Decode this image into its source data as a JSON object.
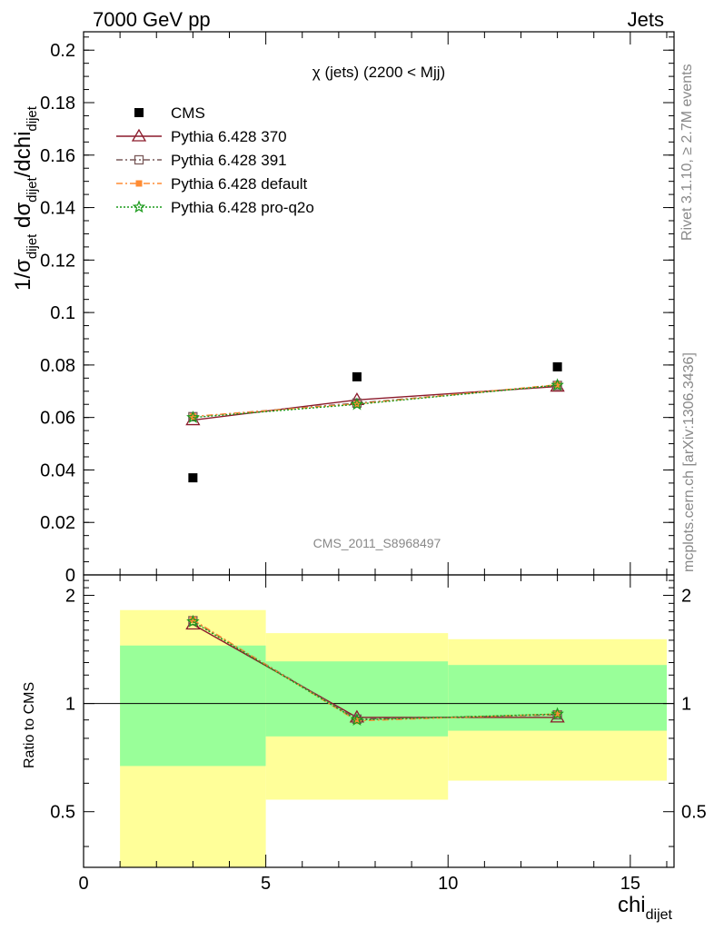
{
  "header": {
    "left": "7000 GeV pp",
    "right": "Jets"
  },
  "side_labels": {
    "rivet": "Rivet 3.1.10, ≥ 2.7M events",
    "mcplots": "mcplots.cern.ch [arXiv:1306.3436]"
  },
  "chart_data": [
    {
      "type": "line",
      "title": "χ (jets) (2200 < Mjj)",
      "watermark": "CMS_2011_S8968497",
      "ylabel": {
        "main": "1/σ",
        "sub1": "dijet",
        "mid": " dσ",
        "sub2": "dijet",
        "end": "/dchi",
        "sub3": "dijet"
      },
      "xlim": [
        0,
        16.2
      ],
      "ylim": [
        0,
        0.207
      ],
      "yticks": [
        0,
        0.02,
        0.04,
        0.06,
        0.08,
        0.1,
        0.12,
        0.14,
        0.16,
        0.18,
        0.2
      ],
      "ytick_labels": [
        "0",
        "0.02",
        "0.04",
        "0.06",
        "0.08",
        "0.1",
        "0.12",
        "0.14",
        "0.16",
        "0.18",
        "0.2"
      ],
      "legend_position": "top-left",
      "x": [
        3,
        7.5,
        13
      ],
      "series": [
        {
          "name": "CMS",
          "marker": "square",
          "color": "#000000",
          "values": [
            0.037,
            0.0755,
            0.0793
          ]
        },
        {
          "name": "Pythia 6.428 370",
          "marker": "triangle",
          "color": "#8b1a2b",
          "dash": "",
          "values": [
            0.059,
            0.0667,
            0.0718
          ]
        },
        {
          "name": "Pythia 6.428 391",
          "marker": "open-square",
          "color": "#7a5a5a",
          "dash": "7,3,2,3",
          "values": [
            0.0603,
            0.0655,
            0.0722
          ]
        },
        {
          "name": "Pythia 6.428 default",
          "marker": "filled-square",
          "color": "#ff8c33",
          "dash": "7,3,2,3",
          "values": [
            0.0604,
            0.0652,
            0.0725
          ]
        },
        {
          "name": "Pythia 6.428 pro-q2o",
          "marker": "star",
          "color": "#1a9a1a",
          "dash": "2,2",
          "values": [
            0.06,
            0.065,
            0.0723
          ]
        }
      ]
    },
    {
      "type": "line",
      "ylabel": "Ratio to CMS",
      "xlabel": {
        "main": "chi",
        "sub": "dijet"
      },
      "xlim": [
        0,
        16.2
      ],
      "ylim": [
        0.35,
        2.28
      ],
      "yticks": [
        0.5,
        1,
        2
      ],
      "ytick_labels": [
        "0.5",
        "1",
        "2"
      ],
      "xticks": [
        0,
        5,
        10,
        15
      ],
      "xtick_labels": [
        "0",
        "5",
        "10",
        "15"
      ],
      "bands": [
        {
          "x0": 1,
          "x1": 5,
          "yellow": [
            0.35,
            1.82
          ],
          "green": [
            0.67,
            1.45
          ]
        },
        {
          "x0": 5,
          "x1": 10,
          "yellow": [
            0.54,
            1.57
          ],
          "green": [
            0.81,
            1.31
          ]
        },
        {
          "x0": 10,
          "x1": 16,
          "yellow": [
            0.61,
            1.51
          ],
          "green": [
            0.84,
            1.28
          ]
        }
      ],
      "x": [
        3,
        7.5,
        13
      ],
      "series": [
        {
          "name": "Pythia 6.428 370",
          "values": [
            1.66,
            0.915,
            0.915
          ]
        },
        {
          "name": "Pythia 6.428 391",
          "values": [
            1.7,
            0.905,
            0.93
          ]
        },
        {
          "name": "Pythia 6.428 default",
          "values": [
            1.71,
            0.895,
            0.935
          ]
        },
        {
          "name": "Pythia 6.428 pro-q2o",
          "values": [
            1.69,
            0.9,
            0.935
          ]
        }
      ]
    }
  ]
}
